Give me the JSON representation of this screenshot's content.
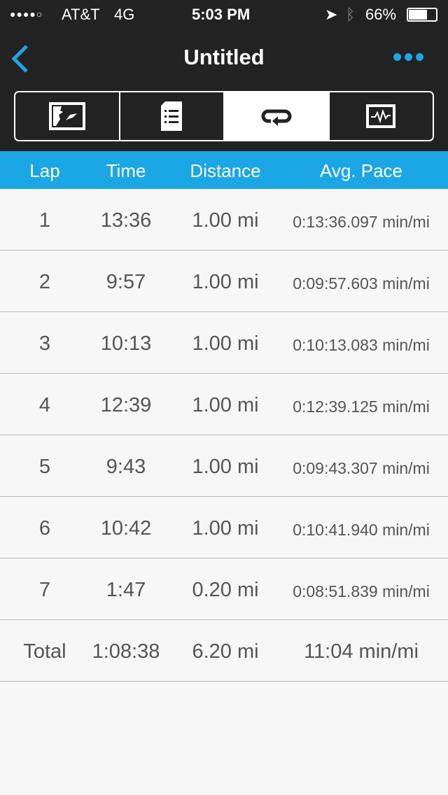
{
  "status": {
    "carrier": "AT&T",
    "network": "4G",
    "time": "5:03 PM",
    "battery": "66%",
    "battery_level": 0.66,
    "signal_bars": 4
  },
  "nav": {
    "title": "Untitled",
    "back_icon": "chevron-left-icon",
    "more_icon": "ellipsis-icon",
    "accent": "#1ba6e6"
  },
  "tabs": [
    {
      "icon": "map-icon"
    },
    {
      "icon": "list-document-icon"
    },
    {
      "icon": "laps-loop-icon",
      "active": true
    },
    {
      "icon": "chart-pulse-icon"
    }
  ],
  "table": {
    "headers": [
      "Lap",
      "Time",
      "Distance",
      "Avg. Pace"
    ],
    "rows": [
      [
        "1",
        "13:36",
        "1.00 mi",
        "0:13:36.097 min/mi"
      ],
      [
        "2",
        "9:57",
        "1.00 mi",
        "0:09:57.603 min/mi"
      ],
      [
        "3",
        "10:13",
        "1.00 mi",
        "0:10:13.083 min/mi"
      ],
      [
        "4",
        "12:39",
        "1.00 mi",
        "0:12:39.125 min/mi"
      ],
      [
        "5",
        "9:43",
        "1.00 mi",
        "0:09:43.307 min/mi"
      ],
      [
        "6",
        "10:42",
        "1.00 mi",
        "0:10:41.940 min/mi"
      ],
      [
        "7",
        "1:47",
        "0.20 mi",
        "0:08:51.839 min/mi"
      ]
    ],
    "total": [
      "Total",
      "1:08:38",
      "6.20 mi",
      "11:04 min/mi"
    ]
  }
}
